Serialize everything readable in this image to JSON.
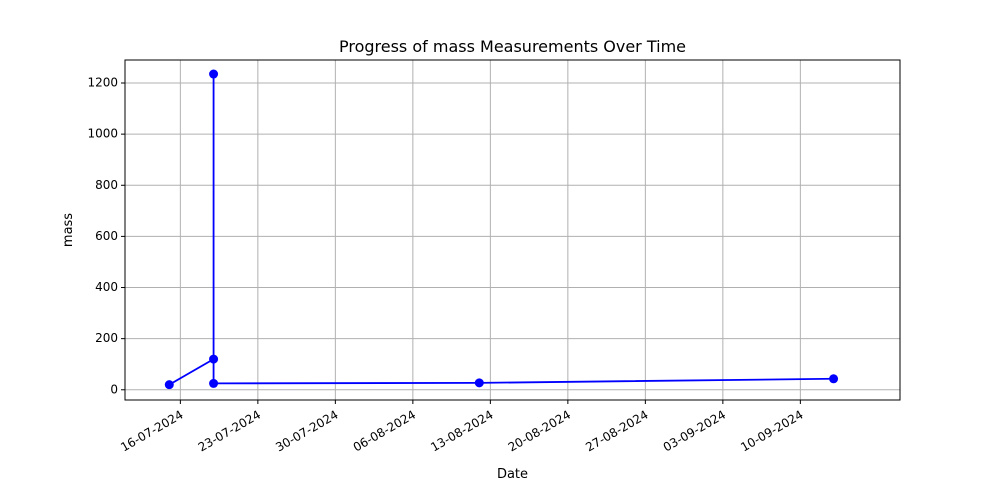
{
  "chart_data": {
    "type": "line",
    "title": "Progress of mass Measurements Over Time",
    "xlabel": "Date",
    "ylabel": "mass",
    "x_axis_type": "date",
    "date_format": "DD-MM-YYYY",
    "grid": true,
    "legend": "none",
    "xlim": [
      "2024-07-11",
      "2024-09-19"
    ],
    "ylim": [
      -40,
      1290
    ],
    "x_ticks": [
      "16-07-2024",
      "23-07-2024",
      "30-07-2024",
      "06-08-2024",
      "13-08-2024",
      "20-08-2024",
      "27-08-2024",
      "03-09-2024",
      "10-09-2024"
    ],
    "y_ticks": [
      0,
      200,
      400,
      600,
      800,
      1000,
      1200
    ],
    "line_color": "#0000ff",
    "series": [
      {
        "x": [
          "2024-07-15",
          "2024-07-19",
          "2024-07-19",
          "2024-07-19",
          "2024-08-12",
          "2024-09-13"
        ],
        "y": [
          20,
          120,
          1235,
          25,
          27,
          43
        ]
      }
    ]
  }
}
